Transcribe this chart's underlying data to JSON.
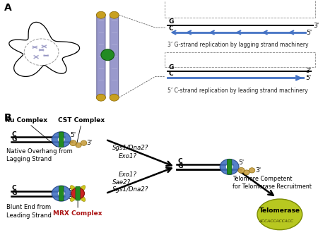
{
  "bg_color": "#ffffff",
  "label_A": "A",
  "label_B": "B",
  "panel_A": {
    "top_caption": "3’ G-strand replication by lagging strand machinery",
    "bot_caption": "5’ C-strand replication by leading strand machinery",
    "arrow_color": "#4472C4",
    "line_color": "#000000"
  },
  "panel_B": {
    "ku_label": "Ku Complex",
    "cst_label": "CST Complex",
    "native_label": "Native Overhang from\nLagging Strand",
    "blunt_label": "Blunt End from\nLeading Strand",
    "mrx_label": "MRX Complex",
    "sgs1_top": "Sgs1/Dna2?",
    "exo1_top": "Exo1?",
    "exo1_bot": "Exo1?",
    "sae2": "Sae2?",
    "sgs1_bot": "Sgs1/Dna2?",
    "telomere_competent": "Telomere Competent\nfor Telomerase Recruitment",
    "telomerase_label": "Telomerase",
    "telomerase_seq": "ACCACCACCACC",
    "ku_color": "#4472C4",
    "cst_color": "#C8A044",
    "mrx_color": "#CC2222",
    "ring_color": "#228B22",
    "yellow_color": "#C8C000",
    "telomerase_color": "#B8C820",
    "arrow_color": "#000000",
    "line_color": "#000000"
  }
}
